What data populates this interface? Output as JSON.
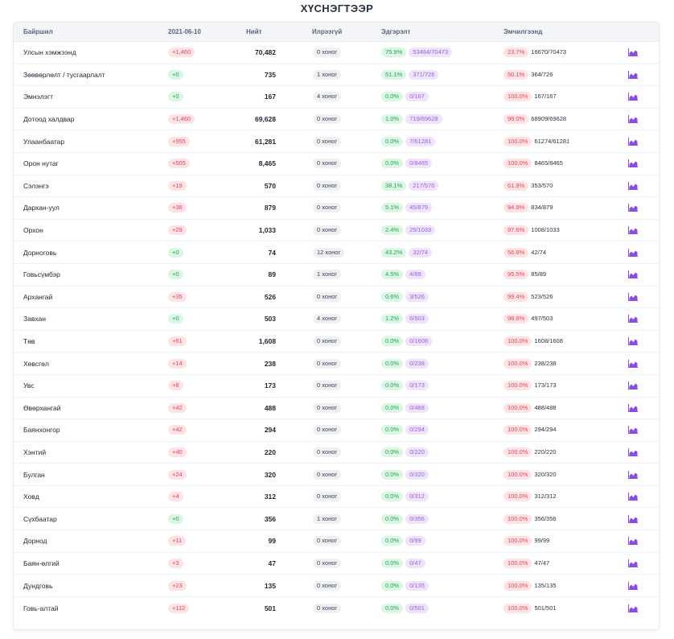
{
  "page_title": "ХҮСНЭГТЭЭР",
  "columns": {
    "location": "Байршил",
    "date": "2021-06-10",
    "total": "Нийт",
    "no_new": "Илрээгүй",
    "recovered": "Эдгэрэлт",
    "treatment": "Эмчилгээнд"
  },
  "rows": [
    {
      "name": "Улсын хэмжээнд",
      "new": "+1,460",
      "total": "70,482",
      "days": "0 хоног",
      "rec_pct": "75.9%",
      "rec_frac": "53464/70473",
      "tr_pct": "23.7%",
      "tr_frac": "16670/70473"
    },
    {
      "name": "Зөөвөрлөлт / тусгаарлалт",
      "new": "+0",
      "total": "735",
      "days": "1 хоног",
      "rec_pct": "51.1%",
      "rec_frac": "371/726",
      "tr_pct": "50.1%",
      "tr_frac": "364/726"
    },
    {
      "name": "Эмнэлэгт",
      "new": "+0",
      "total": "167",
      "days": "4 хоног",
      "rec_pct": "0.0%",
      "rec_frac": "0/167",
      "tr_pct": "100.0%",
      "tr_frac": "167/167"
    },
    {
      "name": "Дотоод халдвар",
      "new": "+1,460",
      "total": "69,628",
      "days": "0 хоног",
      "rec_pct": "1.0%",
      "rec_frac": "719/69628",
      "tr_pct": "99.0%",
      "tr_frac": "68909/69628"
    },
    {
      "name": "Улаанбаатар",
      "new": "+955",
      "total": "61,281",
      "days": "0 хоног",
      "rec_pct": "0.0%",
      "rec_frac": "7/61281",
      "tr_pct": "100.0%",
      "tr_frac": "61274/61281"
    },
    {
      "name": "Орон нутаг",
      "new": "+505",
      "total": "8,465",
      "days": "0 хоног",
      "rec_pct": "0.0%",
      "rec_frac": "0/8465",
      "tr_pct": "100.0%",
      "tr_frac": "8465/8465"
    },
    {
      "name": "Сэлэнгэ",
      "new": "+19",
      "total": "570",
      "days": "0 хоног",
      "rec_pct": "38.1%",
      "rec_frac": "217/570",
      "tr_pct": "61.9%",
      "tr_frac": "353/570"
    },
    {
      "name": "Дархан-уул",
      "new": "+38",
      "total": "879",
      "days": "0 хоног",
      "rec_pct": "5.1%",
      "rec_frac": "45/879",
      "tr_pct": "94.9%",
      "tr_frac": "834/879"
    },
    {
      "name": "Орхон",
      "new": "+29",
      "total": "1,033",
      "days": "0 хоног",
      "rec_pct": "2.4%",
      "rec_frac": "25/1033",
      "tr_pct": "97.6%",
      "tr_frac": "1008/1033"
    },
    {
      "name": "Дорноговь",
      "new": "+0",
      "total": "74",
      "days": "12 хоног",
      "rec_pct": "43.2%",
      "rec_frac": "32/74",
      "tr_pct": "56.8%",
      "tr_frac": "42/74"
    },
    {
      "name": "Говьсүмбэр",
      "new": "+0",
      "total": "89",
      "days": "1 хоног",
      "rec_pct": "4.5%",
      "rec_frac": "4/89",
      "tr_pct": "95.5%",
      "tr_frac": "85/89"
    },
    {
      "name": "Архангай",
      "new": "+35",
      "total": "526",
      "days": "0 хоног",
      "rec_pct": "0.6%",
      "rec_frac": "3/526",
      "tr_pct": "99.4%",
      "tr_frac": "523/526"
    },
    {
      "name": "Завхан",
      "new": "+0",
      "total": "503",
      "days": "4 хоног",
      "rec_pct": "1.2%",
      "rec_frac": "6/503",
      "tr_pct": "98.8%",
      "tr_frac": "497/503"
    },
    {
      "name": "Төв",
      "new": "+61",
      "total": "1,608",
      "days": "0 хоног",
      "rec_pct": "0.0%",
      "rec_frac": "0/1608",
      "tr_pct": "100.0%",
      "tr_frac": "1608/1608"
    },
    {
      "name": "Хөвсгөл",
      "new": "+14",
      "total": "238",
      "days": "0 хоног",
      "rec_pct": "0.0%",
      "rec_frac": "0/238",
      "tr_pct": "100.0%",
      "tr_frac": "238/238"
    },
    {
      "name": "Увс",
      "new": "+8",
      "total": "173",
      "days": "0 хоног",
      "rec_pct": "0.0%",
      "rec_frac": "0/173",
      "tr_pct": "100.0%",
      "tr_frac": "173/173"
    },
    {
      "name": "Өвөрхангай",
      "new": "+42",
      "total": "488",
      "days": "0 хоног",
      "rec_pct": "0.0%",
      "rec_frac": "0/488",
      "tr_pct": "100.0%",
      "tr_frac": "488/488"
    },
    {
      "name": "Баянхонгор",
      "new": "+42",
      "total": "294",
      "days": "0 хоног",
      "rec_pct": "0.0%",
      "rec_frac": "0/294",
      "tr_pct": "100.0%",
      "tr_frac": "294/294"
    },
    {
      "name": "Хэнтий",
      "new": "+40",
      "total": "220",
      "days": "0 хоног",
      "rec_pct": "0.0%",
      "rec_frac": "0/220",
      "tr_pct": "100.0%",
      "tr_frac": "220/220"
    },
    {
      "name": "Булган",
      "new": "+24",
      "total": "320",
      "days": "0 хоног",
      "rec_pct": "0.0%",
      "rec_frac": "0/320",
      "tr_pct": "100.0%",
      "tr_frac": "320/320"
    },
    {
      "name": "Ховд",
      "new": "+4",
      "total": "312",
      "days": "0 хоног",
      "rec_pct": "0.0%",
      "rec_frac": "0/312",
      "tr_pct": "100.0%",
      "tr_frac": "312/312"
    },
    {
      "name": "Сүхбаатар",
      "new": "+0",
      "total": "356",
      "days": "1 хоног",
      "rec_pct": "0.0%",
      "rec_frac": "0/356",
      "tr_pct": "100.0%",
      "tr_frac": "356/356"
    },
    {
      "name": "Дорнод",
      "new": "+11",
      "total": "99",
      "days": "0 хоног",
      "rec_pct": "0.0%",
      "rec_frac": "0/99",
      "tr_pct": "100.0%",
      "tr_frac": "99/99"
    },
    {
      "name": "Баян-өлгий",
      "new": "+3",
      "total": "47",
      "days": "0 хоног",
      "rec_pct": "0.0%",
      "rec_frac": "0/47",
      "tr_pct": "100.0%",
      "tr_frac": "47/47"
    },
    {
      "name": "Дундговь",
      "new": "+23",
      "total": "135",
      "days": "0 хоног",
      "rec_pct": "0.0%",
      "rec_frac": "0/135",
      "tr_pct": "100.0%",
      "tr_frac": "135/135"
    },
    {
      "name": "Говь-алтай",
      "new": "+112",
      "total": "501",
      "days": "0 хоног",
      "rec_pct": "0.0%",
      "rec_frac": "0/501",
      "tr_pct": "100.0%",
      "tr_frac": "501/501"
    }
  ],
  "colors": {
    "new_positive": "#e34854",
    "new_zero": "#23a455",
    "recovered": "#23a455",
    "fraction": "#9a5de6",
    "chart_icon": "#8a4de0"
  },
  "icons": {
    "row_action": "area-chart-icon"
  }
}
